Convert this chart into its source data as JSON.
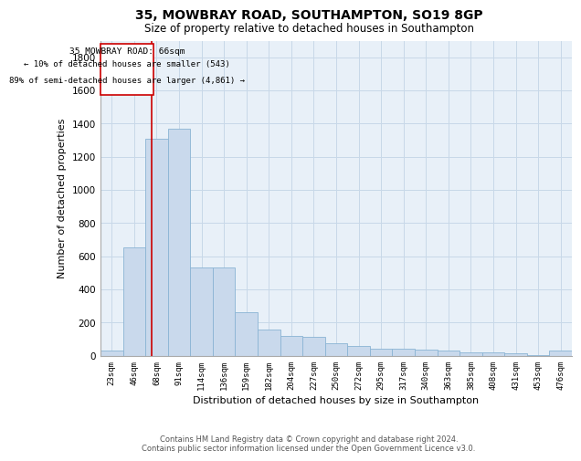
{
  "title_line1": "35, MOWBRAY ROAD, SOUTHAMPTON, SO19 8GP",
  "title_line2": "Size of property relative to detached houses in Southampton",
  "xlabel": "Distribution of detached houses by size in Southampton",
  "ylabel": "Number of detached properties",
  "bar_color": "#c9d9ec",
  "bar_edge_color": "#8ab4d4",
  "annotation_line_color": "#cc0000",
  "annotation_box_color": "#cc0000",
  "annotation_text_line1": "35 MOWBRAY ROAD: 66sqm",
  "annotation_text_line2": "← 10% of detached houses are smaller (543)",
  "annotation_text_line3": "89% of semi-detached houses are larger (4,861) →",
  "categories": [
    "23sqm",
    "46sqm",
    "68sqm",
    "91sqm",
    "114sqm",
    "136sqm",
    "159sqm",
    "182sqm",
    "204sqm",
    "227sqm",
    "250sqm",
    "272sqm",
    "295sqm",
    "317sqm",
    "340sqm",
    "363sqm",
    "385sqm",
    "408sqm",
    "431sqm",
    "453sqm",
    "476sqm"
  ],
  "values": [
    30,
    650,
    1310,
    1370,
    530,
    530,
    260,
    155,
    120,
    115,
    75,
    60,
    40,
    40,
    35,
    30,
    20,
    20,
    15,
    5,
    30
  ],
  "ylim": [
    0,
    1900
  ],
  "yticks": [
    0,
    200,
    400,
    600,
    800,
    1000,
    1200,
    1400,
    1600,
    1800
  ],
  "footer_line1": "Contains HM Land Registry data © Crown copyright and database right 2024.",
  "footer_line2": "Contains public sector information licensed under the Open Government Licence v3.0.",
  "background_color": "#ffffff",
  "plot_bg_color": "#e8f0f8",
  "grid_color": "#c8d8e8"
}
